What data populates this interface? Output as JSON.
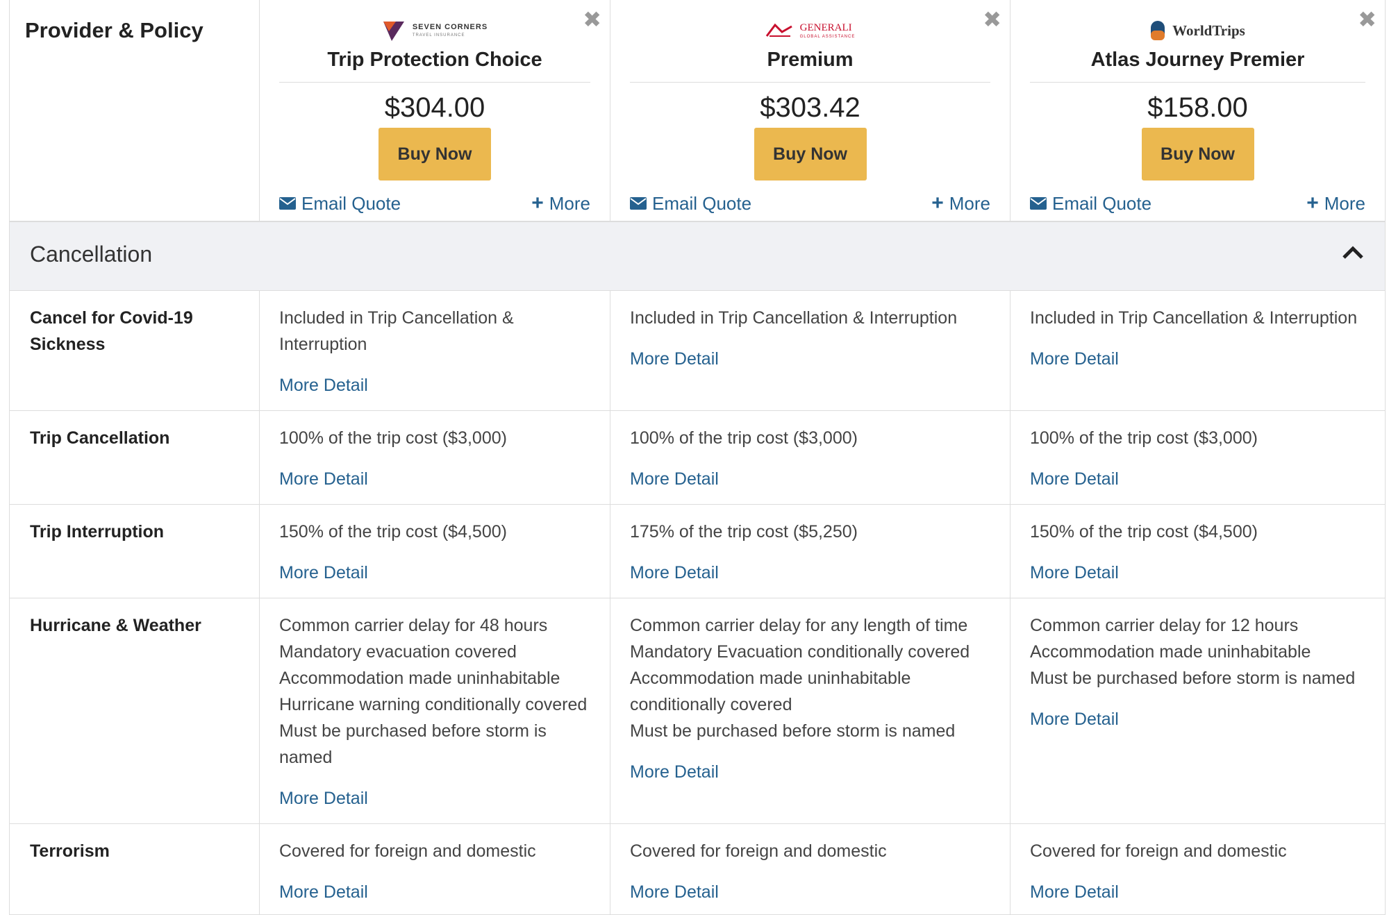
{
  "header": {
    "label": "Provider & Policy"
  },
  "providers": [
    {
      "logo_text": "SEVEN CORNERS",
      "logo_sub": "TRAVEL INSURANCE",
      "plan": "Trip Protection Choice",
      "price": "$304.00",
      "buy": "Buy Now",
      "email": "Email Quote",
      "more": "More",
      "brand_color": "#5a2a5e"
    },
    {
      "logo_text": "GENERALI",
      "logo_sub": "GLOBAL ASSISTANCE",
      "plan": "Premium",
      "price": "$303.42",
      "buy": "Buy Now",
      "email": "Email Quote",
      "more": "More",
      "brand_color": "#c8102e"
    },
    {
      "logo_text": "WorldTrips",
      "logo_sub": "",
      "plan": "Atlas Journey Premier",
      "price": "$158.00",
      "buy": "Buy Now",
      "email": "Email Quote",
      "more": "More",
      "brand_color": "#1f4e79"
    }
  ],
  "section": {
    "title": "Cancellation"
  },
  "more_detail": "More Detail",
  "rows": [
    {
      "label": "Cancel for Covid-19 Sickness",
      "values": [
        [
          "Included in Trip Cancellation & Interruption"
        ],
        [
          "Included in Trip Cancellation & Interruption"
        ],
        [
          "Included in Trip Cancellation & Interruption"
        ]
      ]
    },
    {
      "label": "Trip Cancellation",
      "values": [
        [
          "100% of the trip cost ($3,000)"
        ],
        [
          "100% of the trip cost ($3,000)"
        ],
        [
          "100% of the trip cost ($3,000)"
        ]
      ]
    },
    {
      "label": "Trip Interruption",
      "values": [
        [
          "150% of the trip cost ($4,500)"
        ],
        [
          "175% of the trip cost ($5,250)"
        ],
        [
          "150% of the trip cost ($4,500)"
        ]
      ]
    },
    {
      "label": "Hurricane & Weather",
      "values": [
        [
          "Common carrier delay for 48 hours",
          "Mandatory evacuation covered",
          "Accommodation made uninhabitable",
          "Hurricane warning conditionally covered",
          "Must be purchased before storm is named"
        ],
        [
          "Common carrier delay for any length of time",
          "Mandatory Evacuation conditionally covered",
          "Accommodation made uninhabitable conditionally covered",
          "Must be purchased before storm is named"
        ],
        [
          "Common carrier delay for 12 hours",
          "Accommodation made uninhabitable",
          "Must be purchased before storm is named"
        ]
      ]
    },
    {
      "label": "Terrorism",
      "values": [
        [
          "Covered for foreign and domestic"
        ],
        [
          "Covered for foreign and domestic"
        ],
        [
          "Covered for foreign and domestic"
        ]
      ]
    }
  ],
  "colors": {
    "accent_button": "#ebb84f",
    "link": "#25618f",
    "section_bg": "#f0f1f4"
  }
}
